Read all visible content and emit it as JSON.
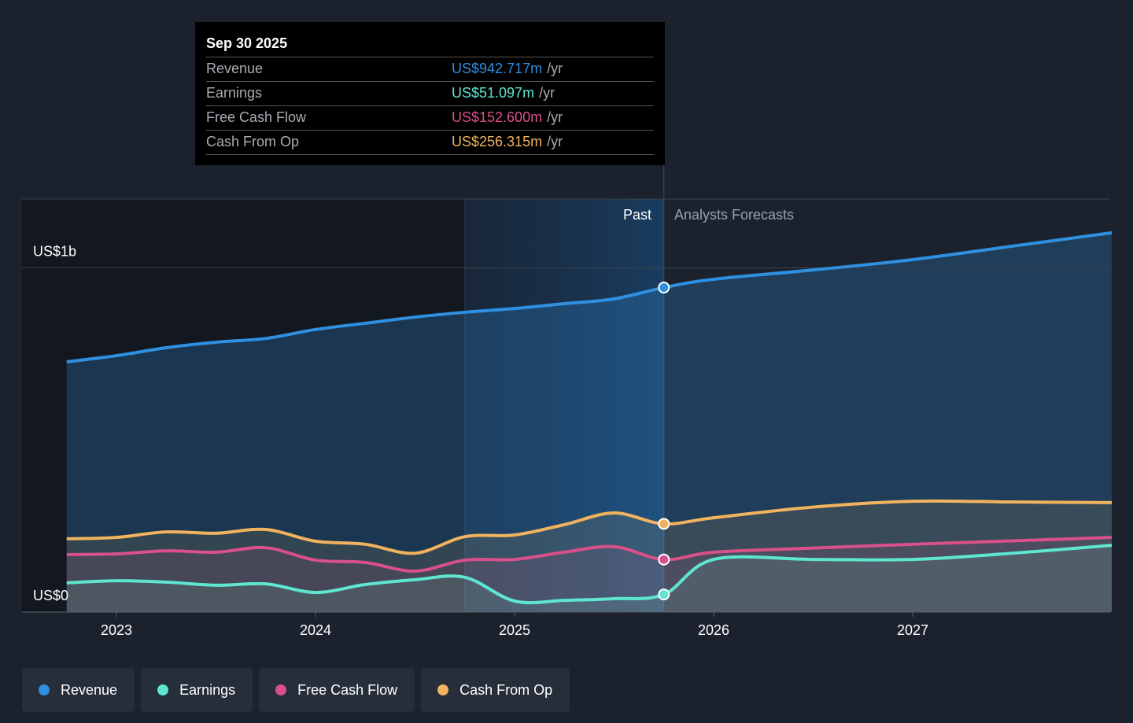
{
  "chart_data": {
    "type": "line",
    "x": [
      2022.75,
      2023,
      2023.25,
      2023.5,
      2023.75,
      2024,
      2024.25,
      2024.5,
      2024.75,
      2025,
      2025.25,
      2025.5,
      2025.75,
      2026,
      2026.5,
      2027,
      2027.5,
      2028
    ],
    "xlim": [
      2022.5,
      2028
    ],
    "xticks": [
      2023,
      2024,
      2025,
      2026,
      2027
    ],
    "ylim": [
      0,
      1200
    ],
    "yticks": [
      {
        "value": 0,
        "label": "US$0"
      },
      {
        "value": 1000,
        "label": "US$1b"
      }
    ],
    "series": [
      {
        "name": "Revenue",
        "color": "#2f8fe0",
        "values": [
          727,
          745,
          768,
          784,
          795,
          821,
          839,
          857,
          871,
          882,
          896,
          910,
          942.717,
          967,
          994,
          1024,
          1063,
          1102
        ]
      },
      {
        "name": "Earnings",
        "color": "#5ee6d0",
        "values": [
          85,
          91,
          87,
          78,
          82,
          57,
          80,
          94,
          101,
          32,
          34,
          39,
          51.097,
          153,
          153,
          153,
          171,
          194
        ]
      },
      {
        "name": "Free Cash Flow",
        "color": "#d9508a",
        "values": [
          167,
          169,
          178,
          174,
          187,
          151,
          144,
          119,
          151,
          153,
          174,
          190,
          152.6,
          174,
          186,
          197,
          207,
          217
        ]
      },
      {
        "name": "Cash From Op",
        "color": "#f1b35e",
        "values": [
          213,
          217,
          233,
          229,
          240,
          206,
          197,
          171,
          219,
          224,
          254,
          288,
          256.315,
          274,
          305,
          322,
          320,
          318
        ]
      }
    ],
    "annotations": {
      "past": "Past",
      "forecast": "Analysts Forecasts"
    },
    "tooltip": {
      "date": "Sep 30 2025",
      "unit": "/yr",
      "values": [
        "US$942.717m",
        "US$51.097m",
        "US$152.600m",
        "US$256.315m"
      ]
    }
  }
}
